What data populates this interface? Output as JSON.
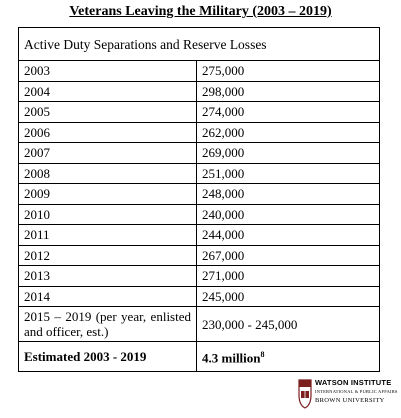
{
  "title": "Veterans Leaving the Military (2003 – 2019)",
  "table": {
    "header": "Active Duty Separations and Reserve Losses",
    "rows": [
      [
        "2003",
        "275,000"
      ],
      [
        "2004",
        "298,000"
      ],
      [
        "2005",
        "274,000"
      ],
      [
        "2006",
        "262,000"
      ],
      [
        "2007",
        "269,000"
      ],
      [
        "2008",
        "251,000"
      ],
      [
        "2009",
        "248,000"
      ],
      [
        "2010",
        "240,000"
      ],
      [
        "2011",
        "244,000"
      ],
      [
        "2012",
        "267,000"
      ],
      [
        "2013",
        "271,000"
      ],
      [
        "2014",
        "245,000"
      ],
      [
        "2015 – 2019 (per year, enlisted and officer, est.)",
        "230,000 - 245,000"
      ]
    ],
    "total": {
      "label": "Estimated 2003 - 2019",
      "value": "4.3 million",
      "footnote": "8"
    }
  },
  "logo": {
    "name": "WATSON INSTITUTE",
    "subtitle": "INTERNATIONAL & PUBLIC AFFAIRS",
    "university": "BROWN UNIVERSITY"
  }
}
